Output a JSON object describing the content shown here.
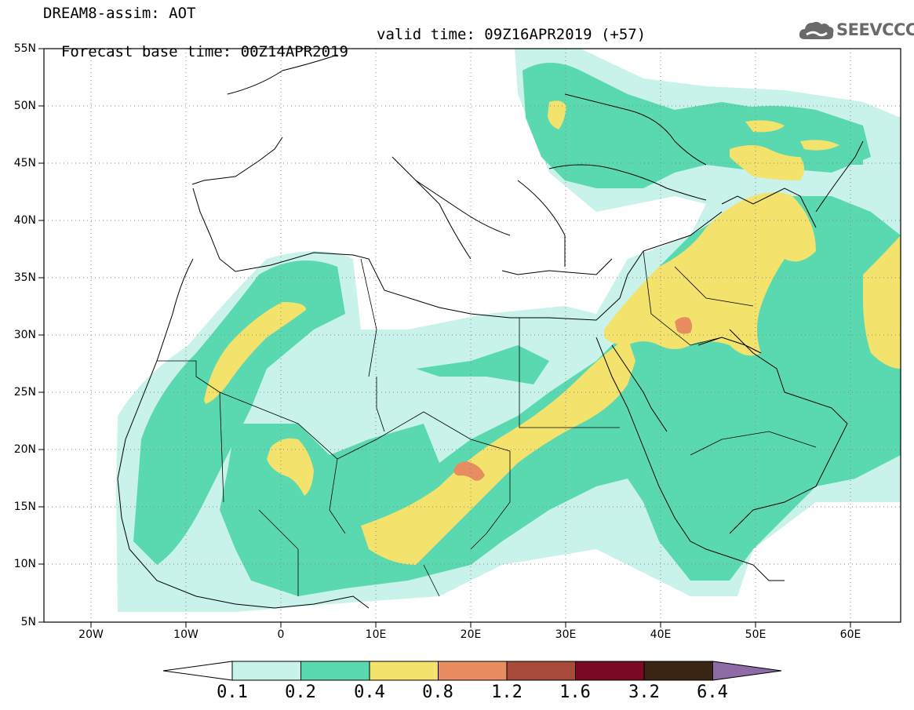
{
  "header": {
    "title": "DREAM8-assim: AOT",
    "base_time": "Forecast base time: 00Z14APR2019",
    "valid_time": "valid time: 09Z16APR2019 (+57)"
  },
  "logo": {
    "text": "SEEVCCC",
    "icon": "cloud-icon",
    "color": "#6a6a6a"
  },
  "map": {
    "region": "North Africa, Europe, Middle East",
    "lon_range": [
      -25,
      65
    ],
    "lat_range": [
      5,
      55
    ],
    "lat_labels": [
      "55N",
      "50N",
      "45N",
      "40N",
      "35N",
      "30N",
      "25N",
      "20N",
      "15N",
      "10N",
      "5N"
    ],
    "lon_labels": [
      "20W",
      "10W",
      "0",
      "10E",
      "20E",
      "30E",
      "40E",
      "50E",
      "60E"
    ],
    "grid": "dotted",
    "dust_maxima": [
      {
        "name": "central-sudan-chad",
        "level": "0.8-1.2"
      },
      {
        "name": "iraq",
        "level": "0.8-1.2"
      }
    ]
  },
  "colorbar": {
    "labels": [
      "0.1",
      "0.2",
      "0.4",
      "0.8",
      "1.2",
      "1.6",
      "3.2",
      "6.4"
    ],
    "colors": [
      "#c8f2ea",
      "#5ad9b0",
      "#f3e26c",
      "#e88d61",
      "#a84a3a",
      "#7a0a23",
      "#3a2413",
      "#8e6aa6"
    ],
    "under_color": "#ffffff"
  }
}
